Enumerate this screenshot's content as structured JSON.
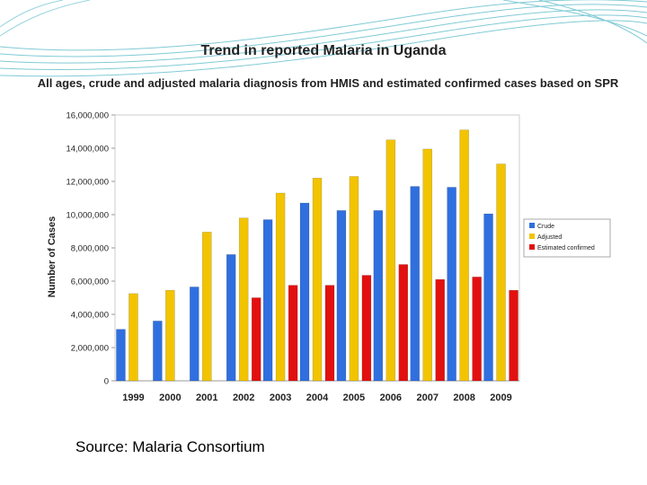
{
  "slide": {
    "source_text": "Source: Malaria Consortium"
  },
  "colors": {
    "crude": "#2f6fe0",
    "adjusted": "#f2c400",
    "estimated_confirmed": "#e31010",
    "deco_teal": "#1aa0b4"
  },
  "chart_data": {
    "type": "bar",
    "title": "Trend in reported Malaria in Uganda",
    "subtitle": "All ages, crude and adjusted malaria diagnosis from HMIS and estimated confirmed cases based on SPR",
    "xlabel": "",
    "ylabel": "Number of Cases",
    "ylim": [
      0,
      16000000
    ],
    "yticks": [
      0,
      2000000,
      4000000,
      6000000,
      8000000,
      10000000,
      12000000,
      14000000,
      16000000
    ],
    "ytick_labels": [
      "0",
      "2,000,000",
      "4,000,000",
      "6,000,000",
      "8,000,000",
      "10,000,000",
      "12,000,000",
      "14,000,000",
      "16,000,000"
    ],
    "categories": [
      "1999",
      "2000",
      "2001",
      "2002",
      "2003",
      "2004",
      "2005",
      "2006",
      "2007",
      "2008",
      "2009"
    ],
    "series": [
      {
        "name": "Crude",
        "color_key": "crude",
        "values": [
          3100000,
          3600000,
          5650000,
          7600000,
          9700000,
          10700000,
          10250000,
          10250000,
          11700000,
          11650000,
          10050000
        ]
      },
      {
        "name": "Adjusted",
        "color_key": "adjusted",
        "values": [
          5250000,
          5450000,
          8950000,
          9800000,
          11300000,
          12200000,
          12300000,
          14500000,
          13950000,
          15100000,
          13050000
        ]
      },
      {
        "name": "Estimated confirmed",
        "color_key": "estimated_confirmed",
        "values": [
          null,
          null,
          null,
          5000000,
          5750000,
          5750000,
          6350000,
          7000000,
          6100000,
          6250000,
          5450000
        ]
      }
    ],
    "grid": false,
    "legend_position": "right"
  }
}
